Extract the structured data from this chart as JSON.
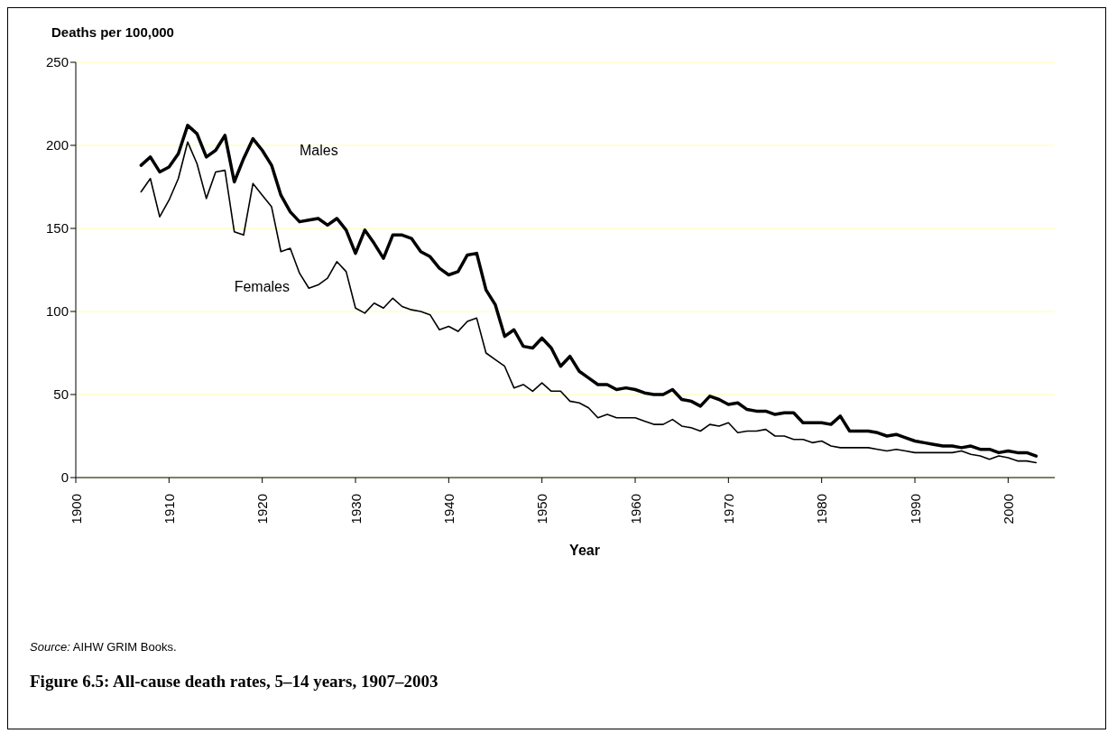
{
  "chart_data": {
    "type": "line",
    "title": "Figure 6.5: All-cause death rates, 5–14 years, 1907–2003",
    "xlabel": "Year",
    "ylabel": "Deaths per 100,000",
    "annotations": [
      "Source: AIHW GRIM Books."
    ],
    "x": [
      1907,
      1908,
      1909,
      1910,
      1911,
      1912,
      1913,
      1914,
      1915,
      1916,
      1917,
      1918,
      1919,
      1920,
      1921,
      1922,
      1923,
      1924,
      1925,
      1926,
      1927,
      1928,
      1929,
      1930,
      1931,
      1932,
      1933,
      1934,
      1935,
      1936,
      1937,
      1938,
      1939,
      1940,
      1941,
      1942,
      1943,
      1944,
      1945,
      1946,
      1947,
      1948,
      1949,
      1950,
      1951,
      1952,
      1953,
      1954,
      1955,
      1956,
      1957,
      1958,
      1959,
      1960,
      1961,
      1962,
      1963,
      1964,
      1965,
      1966,
      1967,
      1968,
      1969,
      1970,
      1971,
      1972,
      1973,
      1974,
      1975,
      1976,
      1977,
      1978,
      1979,
      1980,
      1981,
      1982,
      1983,
      1984,
      1985,
      1986,
      1987,
      1988,
      1989,
      1990,
      1991,
      1992,
      1993,
      1994,
      1995,
      1996,
      1997,
      1998,
      1999,
      2000,
      2001,
      2002,
      2003
    ],
    "series": [
      {
        "name": "Males",
        "color": "#000000",
        "values": [
          188,
          193,
          184,
          187,
          195,
          212,
          207,
          193,
          197,
          206,
          178,
          192,
          204,
          197,
          188,
          170,
          160,
          154,
          155,
          156,
          152,
          156,
          149,
          135,
          149,
          141,
          132,
          146,
          146,
          144,
          136,
          133,
          126,
          122,
          124,
          134,
          135,
          113,
          104,
          85,
          89,
          79,
          78,
          84,
          78,
          67,
          73,
          64,
          60,
          56,
          56,
          53,
          54,
          53,
          51,
          50,
          50,
          53,
          47,
          46,
          43,
          49,
          47,
          44,
          45,
          41,
          40,
          40,
          38,
          39,
          39,
          33,
          33,
          33,
          32,
          37,
          28,
          28,
          28,
          27,
          25,
          26,
          24,
          22,
          21,
          20,
          19,
          19,
          18,
          19,
          17,
          17,
          15,
          16,
          15,
          15,
          13
        ]
      },
      {
        "name": "Females",
        "color": "#000000",
        "values": [
          172,
          180,
          157,
          167,
          180,
          202,
          189,
          168,
          184,
          185,
          148,
          146,
          177,
          170,
          163,
          136,
          138,
          123,
          114,
          116,
          120,
          130,
          124,
          102,
          99,
          105,
          102,
          108,
          103,
          101,
          100,
          98,
          89,
          91,
          88,
          94,
          96,
          75,
          71,
          67,
          54,
          56,
          52,
          57,
          52,
          52,
          46,
          45,
          42,
          36,
          38,
          36,
          36,
          36,
          34,
          32,
          32,
          35,
          31,
          30,
          28,
          32,
          31,
          33,
          27,
          28,
          28,
          29,
          25,
          25,
          23,
          23,
          21,
          22,
          19,
          18,
          18,
          18,
          18,
          17,
          16,
          17,
          16,
          15,
          15,
          15,
          15,
          15,
          16,
          14,
          13,
          11,
          13,
          12,
          10,
          10,
          9
        ]
      }
    ],
    "xlim": [
      1900,
      2005
    ],
    "xticks": [
      1900,
      1910,
      1920,
      1930,
      1940,
      1950,
      1960,
      1970,
      1980,
      1990,
      2000
    ],
    "ylim": [
      0,
      250
    ],
    "yticks": [
      0,
      50,
      100,
      150,
      200,
      250
    ],
    "grid": "y",
    "legend": false,
    "marker": "none",
    "line_style": "solid"
  }
}
